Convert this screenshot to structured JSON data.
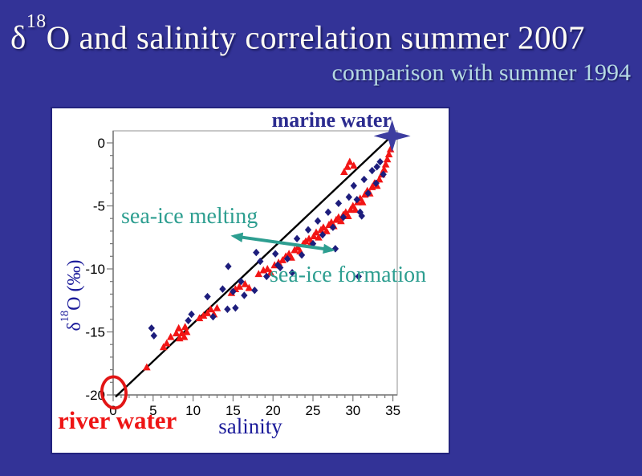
{
  "slide": {
    "title": {
      "delta": "δ",
      "sup": "18",
      "rest": "O and salinity correlation summer 2007"
    },
    "subtitle": "comparison with summer 1994"
  },
  "colors": {
    "background": "#333397",
    "panel": "#ffffff",
    "title_text": "#fffdf5",
    "subtitle_text": "#b5d9e2",
    "navy_accent": "#2b2b8f",
    "teal_accent": "#2d9e90",
    "red_accent": "#ee1515"
  },
  "chart_data": {
    "type": "scatter",
    "xlabel": "salinity",
    "ylabel": {
      "delta": "δ",
      "sup": "18",
      "rest": "O (‰)"
    },
    "xlim": [
      0,
      35.5
    ],
    "ylim": [
      1,
      -20
    ],
    "x_ticks": [
      0,
      5,
      10,
      15,
      20,
      25,
      30,
      35
    ],
    "y_ticks": [
      0,
      -5,
      -10,
      -15,
      -20
    ],
    "x_minor_step": 1,
    "y_minor_step": 1,
    "grid": "off",
    "legend": "none",
    "style": {
      "axis_color": "#777777",
      "box_color": "#aaaaaa",
      "tick_label_color": "#000000"
    },
    "trend_line": {
      "from": [
        0.3,
        -20.15
      ],
      "to": [
        34.85,
        0.55
      ],
      "color": "#000000"
    },
    "star": {
      "at": [
        34.9,
        0.55
      ],
      "color": "#3d3da0"
    },
    "circle": {
      "at": [
        0.1,
        -19.8
      ],
      "color": "#e21515"
    },
    "arrow": {
      "from": [
        15.1,
        -7.4
      ],
      "to": [
        27.4,
        -8.5
      ],
      "color": "#2d9e90"
    },
    "annotations": {
      "marine_water": {
        "text": "marine water",
        "color": "#2b2b8f"
      },
      "sea_ice_melting": {
        "text": "sea-ice melting",
        "color": "#2d9e90"
      },
      "sea_ice_formation": {
        "text": "sea-ice formation",
        "color": "#2d9e90"
      },
      "river_water": {
        "text": "river water",
        "color": "#ee1515"
      }
    },
    "series": [
      {
        "name": "red-triangles",
        "marker": "triangle",
        "color": "#f21515",
        "points": [
          [
            4.2,
            -17.8
          ],
          [
            6.3,
            -16.2
          ],
          [
            6.7,
            -15.9
          ],
          [
            7.2,
            -15.4
          ],
          [
            7.9,
            -15.1
          ],
          [
            8.3,
            -15.5
          ],
          [
            8.6,
            -15.1
          ],
          [
            8.9,
            -15.4
          ],
          [
            9.2,
            -15.0
          ],
          [
            8.2,
            -14.7
          ],
          [
            9.0,
            -14.6
          ],
          [
            10.8,
            -13.9
          ],
          [
            11.3,
            -13.7
          ],
          [
            11.8,
            -13.5
          ],
          [
            12.2,
            -13.2
          ],
          [
            12.6,
            -13.6
          ],
          [
            13.0,
            -13.1
          ],
          [
            14.8,
            -11.9
          ],
          [
            15.3,
            -11.6
          ],
          [
            15.8,
            -11.4
          ],
          [
            16.5,
            -11.2
          ],
          [
            17.0,
            -11.5
          ],
          [
            18.2,
            -10.4
          ],
          [
            18.8,
            -10.1
          ],
          [
            19.3,
            -10.0
          ],
          [
            19.7,
            -10.3
          ],
          [
            20.2,
            -9.7
          ],
          [
            20.7,
            -9.5
          ],
          [
            21.2,
            -9.3
          ],
          [
            21.6,
            -9.0
          ],
          [
            22.0,
            -8.8
          ],
          [
            22.3,
            -9.1
          ],
          [
            22.7,
            -8.5
          ],
          [
            23.1,
            -8.3
          ],
          [
            23.4,
            -8.6
          ],
          [
            23.8,
            -8.0
          ],
          [
            24.1,
            -7.8
          ],
          [
            24.5,
            -7.6
          ],
          [
            24.8,
            -7.9
          ],
          [
            25.1,
            -7.4
          ],
          [
            25.4,
            -7.1
          ],
          [
            25.7,
            -7.5
          ],
          [
            26.0,
            -6.9
          ],
          [
            26.3,
            -6.7
          ],
          [
            26.7,
            -7.0
          ],
          [
            27.0,
            -6.5
          ],
          [
            27.3,
            -6.3
          ],
          [
            27.6,
            -6.6
          ],
          [
            27.9,
            -6.1
          ],
          [
            28.2,
            -5.9
          ],
          [
            28.5,
            -6.2
          ],
          [
            28.8,
            -5.7
          ],
          [
            29.1,
            -5.5
          ],
          [
            29.4,
            -5.8
          ],
          [
            29.7,
            -5.3
          ],
          [
            30.0,
            -5.0
          ],
          [
            30.3,
            -5.3
          ],
          [
            30.6,
            -4.7
          ],
          [
            30.9,
            -4.4
          ],
          [
            31.2,
            -4.7
          ],
          [
            31.5,
            -4.1
          ],
          [
            31.8,
            -3.8
          ],
          [
            32.1,
            -4.0
          ],
          [
            32.4,
            -3.5
          ],
          [
            32.7,
            -3.2
          ],
          [
            33.0,
            -3.4
          ],
          [
            33.3,
            -2.9
          ],
          [
            33.6,
            -2.5
          ],
          [
            33.9,
            -2.1
          ],
          [
            34.1,
            -1.7
          ],
          [
            34.3,
            -1.3
          ],
          [
            34.5,
            -0.9
          ],
          [
            34.7,
            -0.5
          ],
          [
            28.9,
            -2.3
          ],
          [
            29.3,
            -1.9
          ],
          [
            29.6,
            -1.5
          ],
          [
            30.1,
            -1.8
          ]
        ]
      },
      {
        "name": "blue-diamonds",
        "marker": "diamond",
        "color": "#1d1d7c",
        "points": [
          [
            4.8,
            -14.7
          ],
          [
            5.1,
            -15.3
          ],
          [
            9.4,
            -14.1
          ],
          [
            9.8,
            -13.6
          ],
          [
            11.8,
            -12.2
          ],
          [
            12.5,
            -13.8
          ],
          [
            13.7,
            -11.6
          ],
          [
            14.3,
            -13.2
          ],
          [
            14.4,
            -9.8
          ],
          [
            15.0,
            -11.8
          ],
          [
            15.3,
            -13.1
          ],
          [
            16.0,
            -11.0
          ],
          [
            16.4,
            -12.1
          ],
          [
            17.7,
            -11.7
          ],
          [
            17.9,
            -8.7
          ],
          [
            18.4,
            -9.4
          ],
          [
            19.2,
            -10.6
          ],
          [
            20.3,
            -8.8
          ],
          [
            20.6,
            -9.7
          ],
          [
            20.9,
            -9.9
          ],
          [
            21.8,
            -9.2
          ],
          [
            22.4,
            -10.3
          ],
          [
            23.0,
            -7.6
          ],
          [
            23.6,
            -8.9
          ],
          [
            24.4,
            -6.9
          ],
          [
            25.0,
            -8.0
          ],
          [
            25.6,
            -6.2
          ],
          [
            26.2,
            -7.3
          ],
          [
            26.9,
            -5.5
          ],
          [
            27.5,
            -6.7
          ],
          [
            27.8,
            -8.4
          ],
          [
            28.2,
            -4.8
          ],
          [
            28.8,
            -5.9
          ],
          [
            29.5,
            -4.3
          ],
          [
            30.1,
            -3.4
          ],
          [
            30.5,
            -4.5
          ],
          [
            30.7,
            -10.6
          ],
          [
            30.9,
            -5.5
          ],
          [
            31.1,
            -5.8
          ],
          [
            31.4,
            -2.9
          ],
          [
            31.9,
            -4.0
          ],
          [
            32.4,
            -2.2
          ],
          [
            32.9,
            -3.2
          ],
          [
            33.0,
            -1.9
          ],
          [
            33.4,
            -1.5
          ],
          [
            33.8,
            -2.5
          ]
        ]
      }
    ]
  }
}
